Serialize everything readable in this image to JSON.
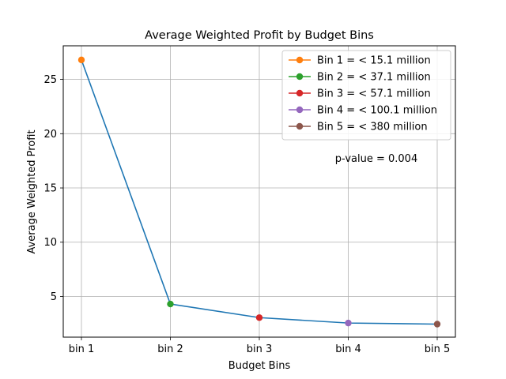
{
  "chart_data": {
    "type": "line",
    "title": "Average Weighted Profit by Budget Bins",
    "xlabel": "Budget Bins",
    "ylabel": "Average Weighted Profit",
    "categories": [
      "bin 1",
      "bin 2",
      "bin 3",
      "bin 4",
      "bin 5"
    ],
    "values": [
      26.8,
      4.3,
      3.05,
      2.55,
      2.45
    ],
    "line_color": "#1f77b4",
    "point_colors": [
      "#ff7f0e",
      "#2ca02c",
      "#d62728",
      "#9467bd",
      "#8c564b"
    ],
    "yticks": [
      5,
      10,
      15,
      20,
      25
    ],
    "ylim": [
      1.25,
      28.1
    ],
    "grid": true,
    "legend_position": "top-right",
    "legend": [
      {
        "label": "Bin 1 = < 15.1 million",
        "color": "#ff7f0e"
      },
      {
        "label": "Bin 2 = < 37.1 million",
        "color": "#2ca02c"
      },
      {
        "label": "Bin 3 = < 57.1 million",
        "color": "#d62728"
      },
      {
        "label": "Bin 4 = < 100.1 million",
        "color": "#9467bd"
      },
      {
        "label": "Bin 5 = < 380 million",
        "color": "#8c564b"
      }
    ],
    "annotation": {
      "text": "p-value = 0.004",
      "color": "#ff0000"
    }
  }
}
